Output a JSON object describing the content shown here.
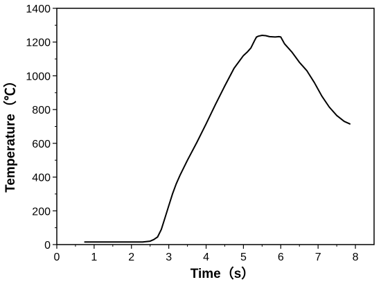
{
  "chart_data": {
    "type": "line",
    "xlabel": "Time（s）",
    "ylabel": "Temperature（℃）",
    "xlim": [
      0,
      8.5
    ],
    "ylim": [
      0,
      1400
    ],
    "xticks": [
      0,
      1,
      2,
      3,
      4,
      5,
      6,
      7,
      8
    ],
    "yticks": [
      0,
      200,
      400,
      600,
      800,
      1000,
      1200,
      1400
    ],
    "grid": false,
    "series": [
      {
        "color": "#000000",
        "x": [
          0.75,
          1.0,
          1.5,
          2.0,
          2.3,
          2.5,
          2.6,
          2.7,
          2.8,
          2.9,
          3.0,
          3.1,
          3.2,
          3.3,
          3.5,
          3.75,
          4.0,
          4.25,
          4.5,
          4.75,
          5.0,
          5.1,
          5.2,
          5.3,
          5.35,
          5.4,
          5.5,
          5.6,
          5.7,
          5.85,
          5.95,
          6.0,
          6.1,
          6.3,
          6.5,
          6.7,
          6.9,
          7.1,
          7.3,
          7.5,
          7.7,
          7.85
        ],
        "y": [
          15,
          15,
          15,
          15,
          15,
          20,
          30,
          45,
          90,
          160,
          230,
          300,
          360,
          410,
          500,
          605,
          715,
          830,
          940,
          1045,
          1120,
          1140,
          1165,
          1210,
          1230,
          1235,
          1240,
          1238,
          1232,
          1230,
          1232,
          1230,
          1190,
          1140,
          1080,
          1030,
          960,
          880,
          815,
          765,
          730,
          715
        ]
      }
    ]
  }
}
